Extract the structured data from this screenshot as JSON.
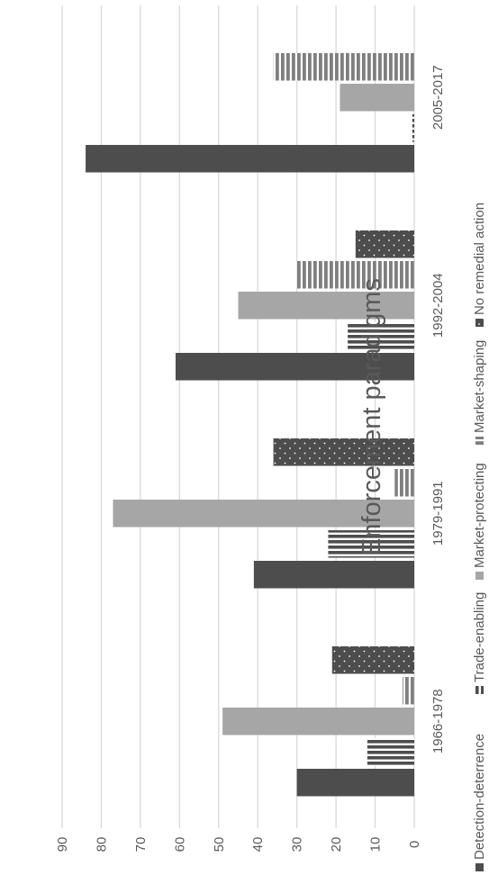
{
  "chart_data": {
    "type": "bar",
    "title": "Enforcement paradigms",
    "categories": [
      "1966-1978",
      "1979-1991",
      "1992-2004",
      "2005-2017"
    ],
    "series": [
      {
        "name": "Detection-deterrence",
        "values": [
          30,
          41,
          61,
          84
        ],
        "color": "#4d4d4d",
        "pattern": "solid"
      },
      {
        "name": "Trade-enabling",
        "values": [
          12,
          22,
          17,
          0.5
        ],
        "color": "#4d4d4d",
        "pattern": "vertical-stripes"
      },
      {
        "name": "Market-protecting",
        "values": [
          49,
          77,
          45,
          19
        ],
        "color": "#a6a6a6",
        "pattern": "solid"
      },
      {
        "name": "Market-shaping",
        "values": [
          3,
          5,
          30,
          36
        ],
        "color": "#7f7f7f",
        "pattern": "horizontal-stripes"
      },
      {
        "name": "No remedial action",
        "values": [
          21,
          36,
          15,
          0
        ],
        "color": "#4d4d4d",
        "pattern": "dots"
      }
    ],
    "ylim": [
      0,
      90
    ],
    "yticks": [
      0,
      10,
      20,
      30,
      40,
      50,
      60,
      70,
      80,
      90
    ],
    "xlabel": "",
    "ylabel": "",
    "grid": true,
    "legend_position": "bottom",
    "orientation": "rotated-90-clockwise"
  }
}
